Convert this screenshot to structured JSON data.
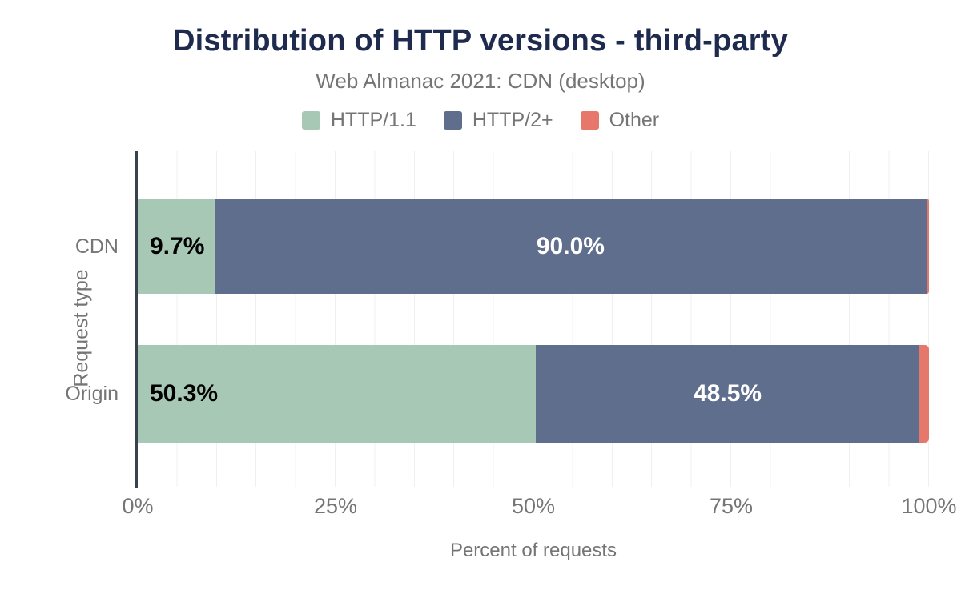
{
  "chart_data": {
    "type": "bar",
    "orientation": "horizontal",
    "stacked": true,
    "title": "Distribution of HTTP versions - third-party",
    "subtitle": "Web Almanac 2021: CDN (desktop)",
    "categories": [
      "CDN",
      "Origin"
    ],
    "series": [
      {
        "name": "HTTP/1.1",
        "color": "#a7c8b4",
        "values": [
          9.7,
          50.3
        ],
        "labels": [
          "9.7%",
          "50.3%"
        ],
        "label_style": "start-dark"
      },
      {
        "name": "HTTP/2+",
        "color": "#5f6e8c",
        "values": [
          90.0,
          48.5
        ],
        "labels": [
          "90.0%",
          "48.5%"
        ],
        "label_style": "center-light"
      },
      {
        "name": "Other",
        "color": "#e6786b",
        "values": [
          0.3,
          1.2
        ],
        "labels": [
          "",
          ""
        ],
        "label_style": "none"
      }
    ],
    "xlabel": "Percent of requests",
    "ylabel": "Request type",
    "xlim": [
      0,
      100
    ],
    "x_ticks": [
      {
        "value": 0,
        "label": "0%"
      },
      {
        "value": 25,
        "label": "25%"
      },
      {
        "value": 50,
        "label": "50%"
      },
      {
        "value": 75,
        "label": "75%"
      },
      {
        "value": 100,
        "label": "100%"
      }
    ],
    "grid": {
      "interval_percent": 5,
      "color": "#f0f0f0",
      "orientation": "vertical"
    },
    "legend_position": "top",
    "colors": {
      "title": "#1e2b4e",
      "text": "#757575",
      "axis_line": "#37424e",
      "grid": "#f0f0f0",
      "annotation_dark": "#000000",
      "annotation_light": "#ffffff",
      "background": "#ffffff"
    }
  }
}
